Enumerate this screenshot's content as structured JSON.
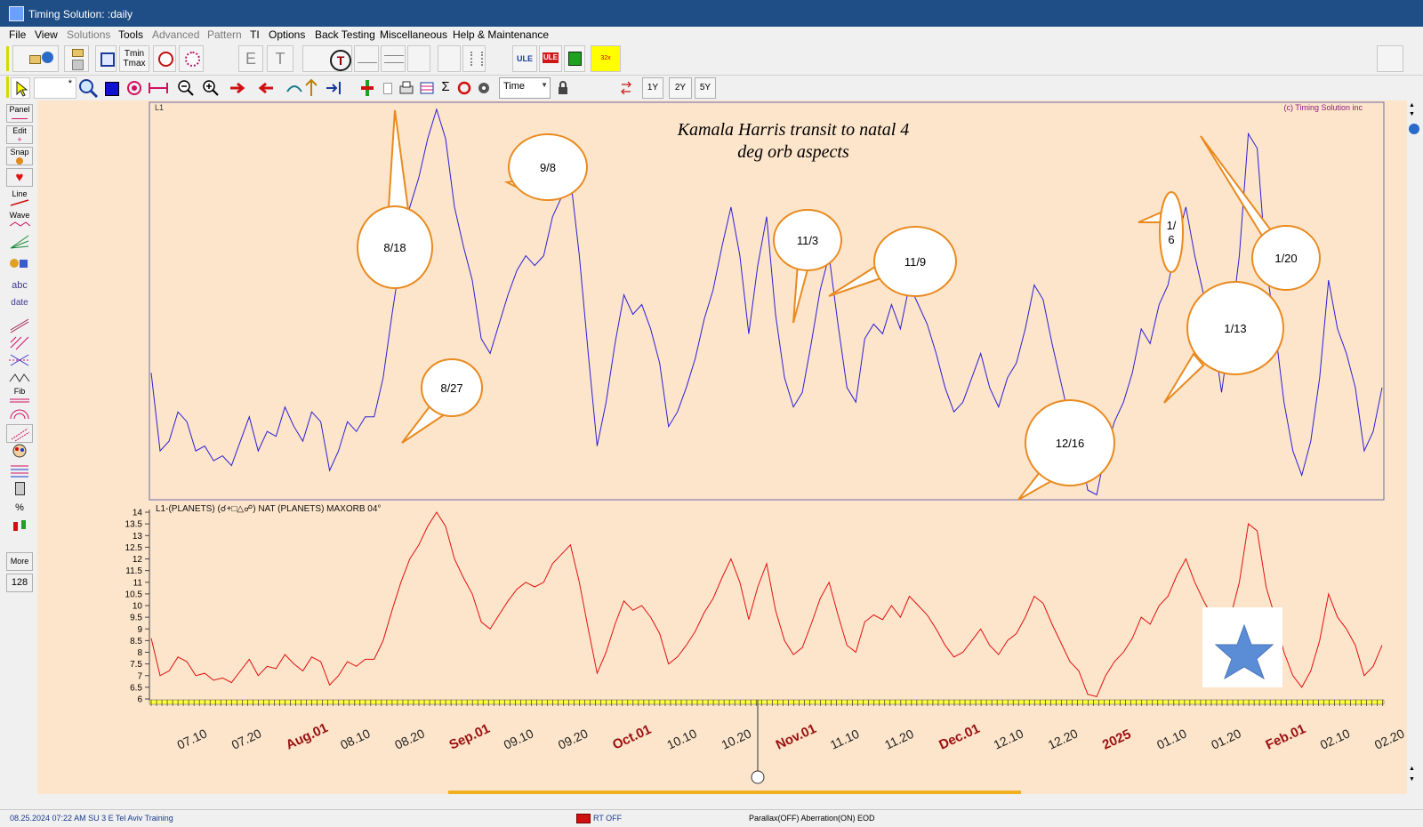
{
  "window": {
    "title": "Timing Solution:   :daily"
  },
  "menu": [
    "File",
    "View",
    "Solutions",
    "Tools",
    "Advanced",
    "Pattern",
    "TI",
    "Options",
    "Back Testing",
    "Miscellaneous",
    "Help & Maintenance"
  ],
  "toolbar": {
    "tmin_label": "Tmin",
    "tmax_label": "Tmax",
    "e_label": "E",
    "t_label": "T",
    "ule1_label": "ULE",
    "ule2_label": "ULE",
    "speed_label": "32x",
    "time_select": "Time",
    "range_1y": "1Y",
    "range_2y": "2Y",
    "range_5y": "5Y"
  },
  "sidebar": {
    "panel": "Panel",
    "edit": "Edit",
    "snap": "Snap",
    "line": "Line",
    "wave": "Wave",
    "abc": "abc",
    "date": "date",
    "fib": "Fib",
    "percent": "%",
    "more": "More",
    "count": "128"
  },
  "chart": {
    "top_label": "L1",
    "copyright": "(c) Timing Solution inc",
    "title_line1": "Kamala Harris transit to natal 4",
    "title_line2": "deg orb aspects",
    "bottom_label": "L1-(PLANETS) (☌+□△☍) NAT (PLANETS)  MAXORB 04°",
    "y_ticks": [
      "14",
      "13.5",
      "13",
      "12.5",
      "12",
      "11.5",
      "11",
      "10.5",
      "10",
      "9.5",
      "9",
      "8.5",
      "8",
      "7.5",
      "7",
      "6.5",
      "6"
    ],
    "callouts": [
      "8/18",
      "9/8",
      "8/27",
      "11/3",
      "11/9",
      "12/16",
      "1/6",
      "1/20",
      "1/13"
    ]
  },
  "chart_data": {
    "type": "line",
    "series": [
      {
        "values": [
          8.6,
          7.0,
          7.2,
          7.8,
          7.6,
          7.0,
          7.1,
          6.8,
          6.9,
          6.7,
          7.2,
          7.7,
          7.0,
          7.4,
          7.3,
          7.9,
          7.5,
          7.2,
          7.8,
          7.6,
          6.6,
          7.0,
          7.6,
          7.4,
          7.7,
          7.7,
          8.5,
          9.8,
          11.0,
          12.0,
          12.6,
          13.4,
          14.0,
          13.4,
          12.0,
          11.2,
          10.5,
          9.3,
          9.0,
          9.6,
          10.2,
          10.7,
          11.0,
          10.8,
          11.0,
          11.8,
          12.2,
          12.6,
          11.0,
          9.0,
          7.1,
          8.0,
          9.2,
          10.2,
          9.8,
          10.0,
          9.5,
          8.8,
          7.5,
          7.8,
          8.3,
          8.9,
          9.7,
          10.3,
          11.2,
          12.0,
          11.0,
          9.4,
          10.8,
          11.8,
          9.8,
          8.5,
          7.9,
          8.2,
          9.2,
          10.3,
          11.0,
          9.6,
          8.3,
          8.0,
          9.3,
          9.6,
          9.4,
          10.0,
          9.5,
          10.4,
          10.0,
          9.6,
          9.0,
          8.3,
          7.8,
          8.0,
          8.5,
          9.0,
          8.3,
          7.9,
          8.5,
          8.8,
          9.5,
          10.4,
          10.1,
          9.2,
          8.4,
          7.6,
          7.2,
          6.2,
          6.1,
          7.0,
          7.6,
          8.0,
          8.6,
          9.5,
          9.2,
          10.0,
          10.4,
          11.3,
          12.0,
          11.0,
          10.2,
          9.5,
          8.2,
          9.5,
          11.0,
          13.5,
          13.2,
          10.8,
          9.5,
          8.0,
          7.0,
          6.5,
          7.2,
          8.5,
          10.5,
          9.5,
          9.0,
          8.3,
          7.0,
          7.4,
          8.3
        ]
      }
    ],
    "x_ticks": [
      "07.10",
      "07.20",
      "Aug.01",
      "08.10",
      "08.20",
      "Sep.01",
      "09.10",
      "09.20",
      "Oct.01",
      "10.10",
      "10.20",
      "Nov.01",
      "11.10",
      "11.20",
      "Dec.01",
      "12.10",
      "12.20",
      "2025",
      "01.10",
      "01.20",
      "Feb.01",
      "02.10",
      "02.20"
    ],
    "ylim": [
      6,
      14
    ]
  },
  "status": {
    "datetime": "08.25.2024   07:22  AM SU   3  E Tel Aviv   Training",
    "rt": "RT OFF",
    "flags": "Parallax(OFF) Aberration(ON) EOD"
  },
  "colors": {
    "top_line": "#2a1fd8",
    "bottom_line": "#e01010",
    "panel_bg": "#fde5cb",
    "callout_border": "#e98a1f",
    "titlebar": "#1f4e87"
  }
}
